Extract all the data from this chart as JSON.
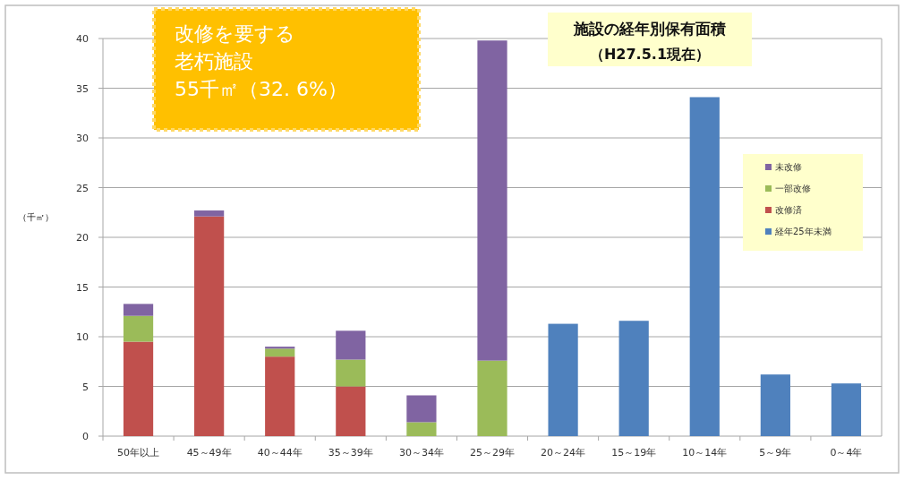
{
  "chart_data": {
    "type": "bar",
    "stacked": true,
    "title": "施設の経年別保有面積",
    "subtitle": "（H27.5.1現在）",
    "ylabel": "（千㎡）",
    "annotations": [
      "改修を要する",
      "老朽施設",
      "55千㎡（32. 6%）"
    ],
    "categories": [
      "50年以上",
      "45～49年",
      "40～44年",
      "35～39年",
      "30～34年",
      "25～29年",
      "20～24年",
      "15～19年",
      "10～14年",
      "5～9年",
      "0～4年"
    ],
    "series": [
      {
        "name": "経年25年未満",
        "color": "#4f81bd",
        "values": [
          null,
          null,
          null,
          null,
          null,
          null,
          11.3,
          11.6,
          34.1,
          6.2,
          5.3
        ]
      },
      {
        "name": "改修済",
        "color": "#c0504d",
        "values": [
          9.5,
          22.1,
          8.0,
          5.0,
          null,
          null,
          null,
          null,
          null,
          null,
          null
        ]
      },
      {
        "name": "一部改修",
        "color": "#9bbb59",
        "values": [
          2.6,
          null,
          0.8,
          2.7,
          1.4,
          7.6,
          null,
          null,
          null,
          null,
          null
        ]
      },
      {
        "name": "未改修",
        "color": "#8064a2",
        "values": [
          1.2,
          0.6,
          0.2,
          2.9,
          2.7,
          32.2,
          null,
          null,
          null,
          null,
          null
        ]
      }
    ],
    "ylim": [
      0,
      40
    ],
    "yticks": [
      0,
      5,
      10,
      15,
      20,
      25,
      30,
      35,
      40
    ],
    "grid": "y",
    "legend": "right"
  }
}
